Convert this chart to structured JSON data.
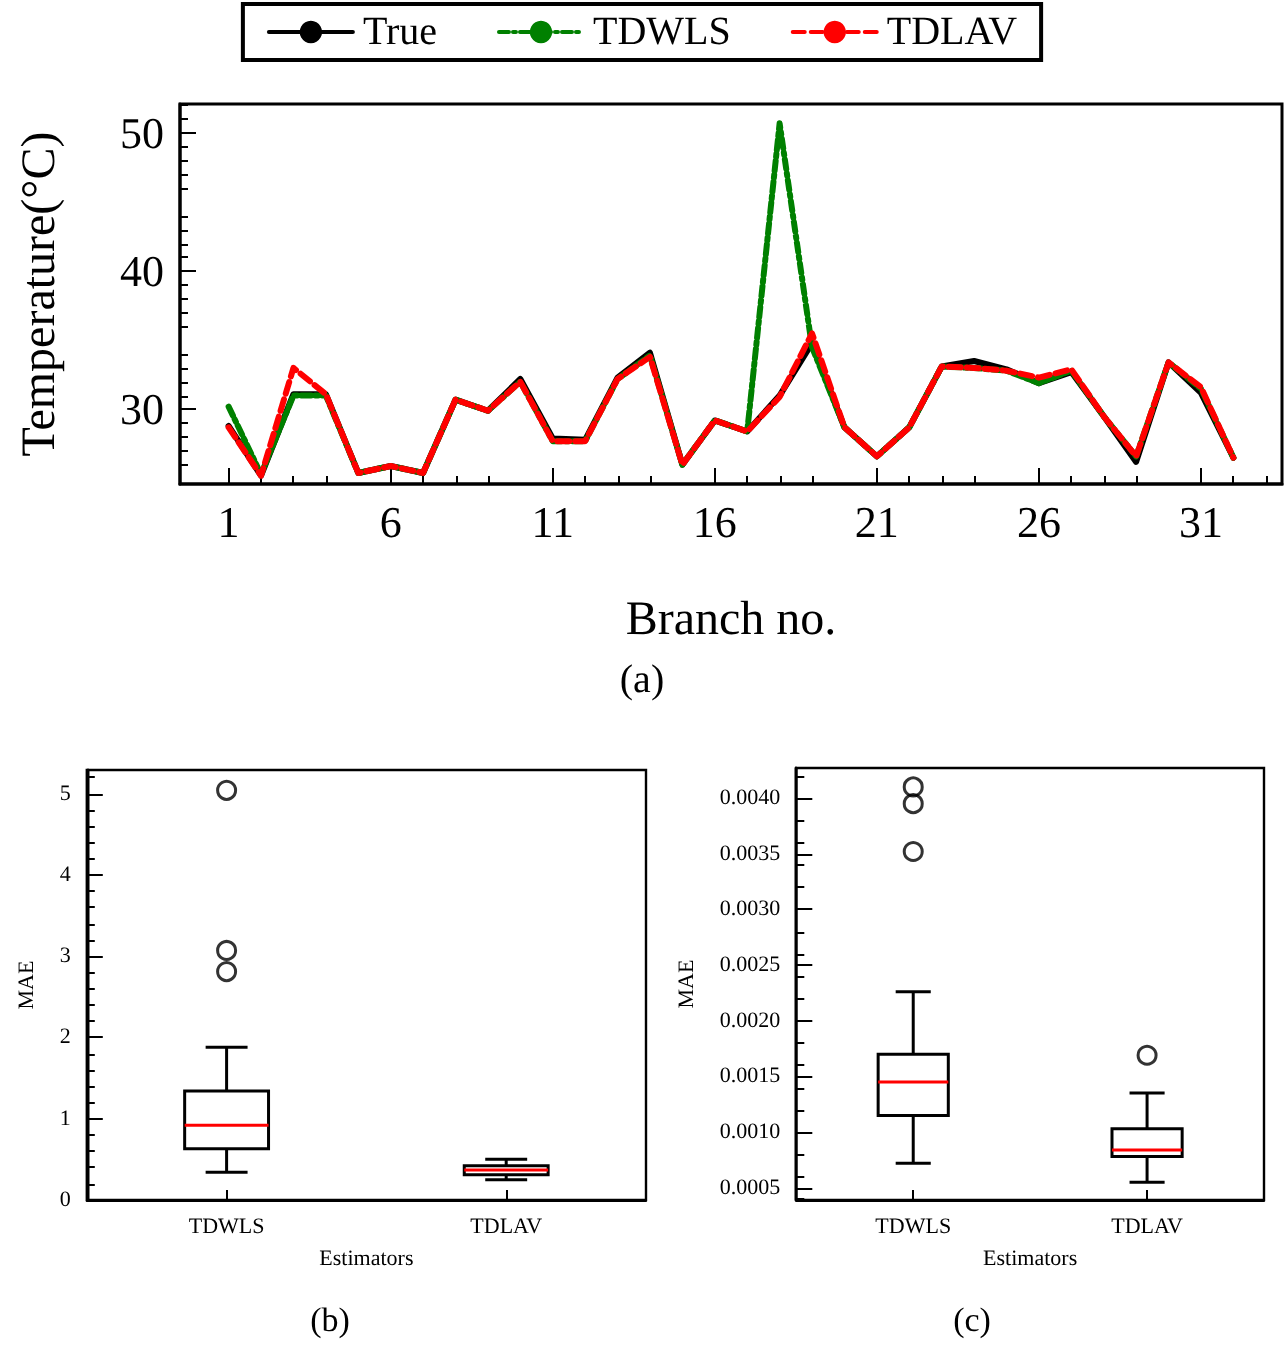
{
  "chart_data": [
    {
      "type": "line",
      "xlabel": "Branch no.",
      "ylabel": "Temperature(°C)",
      "annotations": [
        "(a)"
      ],
      "x": [
        1,
        2,
        3,
        4,
        5,
        6,
        7,
        8,
        9,
        10,
        11,
        12,
        13,
        14,
        15,
        16,
        17,
        18,
        19,
        20,
        21,
        22,
        23,
        24,
        25,
        26,
        27,
        28,
        29,
        30,
        31,
        32
      ],
      "xlim": [
        -0.5,
        33.5
      ],
      "xticks": [
        1,
        6,
        11,
        16,
        21,
        26,
        31
      ],
      "ylim": [
        24.6,
        52.1
      ],
      "yticks": [
        30,
        40,
        50
      ],
      "legend": "top",
      "grid": false,
      "marker": "none",
      "series": [
        {
          "name": "True",
          "color": "#000000",
          "line_style": "solid",
          "values": [
            28.8,
            25.2,
            31.1,
            31.1,
            25.4,
            25.9,
            25.4,
            30.7,
            29.9,
            32.2,
            27.9,
            27.8,
            32.3,
            34.1,
            26.0,
            29.2,
            28.4,
            31.0,
            34.8,
            28.7,
            26.6,
            28.7,
            33.1,
            33.5,
            32.9,
            31.9,
            32.7,
            29.5,
            26.2,
            33.4,
            31.2,
            26.5
          ]
        },
        {
          "name": "TDWLS",
          "color": "#008000",
          "line_style": "dashdot",
          "values": [
            30.2,
            25.3,
            31.0,
            31.0,
            25.4,
            25.9,
            25.4,
            30.7,
            29.9,
            32.0,
            27.7,
            27.7,
            32.2,
            33.9,
            26.0,
            29.2,
            28.4,
            50.7,
            34.5,
            28.7,
            26.6,
            28.7,
            33.1,
            33.0,
            32.8,
            31.9,
            32.8,
            29.5,
            26.6,
            33.4,
            31.5,
            26.5
          ]
        },
        {
          "name": "TDLAV",
          "color": "#ff0000",
          "line_style": "dashed",
          "values": [
            28.7,
            25.2,
            33.0,
            31.1,
            25.4,
            25.9,
            25.4,
            30.7,
            29.9,
            32.0,
            27.7,
            27.7,
            32.2,
            33.8,
            26.0,
            29.2,
            28.4,
            30.9,
            35.5,
            28.7,
            26.6,
            28.7,
            33.1,
            33.0,
            32.8,
            32.3,
            32.9,
            29.5,
            26.6,
            33.4,
            31.6,
            26.5
          ]
        }
      ]
    },
    {
      "type": "box",
      "xlabel": "Estimators",
      "ylabel": "MAE",
      "annotations": [
        "(b)"
      ],
      "categories": [
        "TDWLS",
        "TDLAV"
      ],
      "ylim": [
        0,
        5.29
      ],
      "yticks": [
        0,
        1,
        2,
        3,
        4,
        5
      ],
      "grid": false,
      "series": [
        {
          "color": "#000000",
          "boxes": [
            {
              "low": 0.34,
              "q1": 0.63,
              "median": 0.92,
              "q3": 1.34,
              "high": 1.88,
              "outliers": [
                5.04,
                3.07,
                2.81
              ]
            },
            {
              "low": 0.25,
              "q1": 0.31,
              "median": 0.37,
              "q3": 0.42,
              "high": 0.5
            }
          ]
        }
      ]
    },
    {
      "type": "box",
      "xlabel": "Estimators",
      "ylabel": "MAE",
      "annotations": [
        "(c)"
      ],
      "categories": [
        "TDWLS",
        "TDLAV"
      ],
      "ylim": [
        0.00039,
        0.00427
      ],
      "yticks": [
        {
          "value": 0.0005,
          "label": "0.0005"
        },
        {
          "value": 0.001,
          "label": "0.0010"
        },
        {
          "value": 0.0015,
          "label": "0.0015"
        },
        {
          "value": 0.002,
          "label": "0.0020"
        },
        {
          "value": 0.0025,
          "label": "0.0025"
        },
        {
          "value": 0.003,
          "label": "0.0030"
        },
        {
          "value": 0.0035,
          "label": "0.0035"
        },
        {
          "value": 0.004,
          "label": "0.0040"
        }
      ],
      "grid": false,
      "series": [
        {
          "color": "#000000",
          "boxes": [
            {
              "low": 0.00072,
              "q1": 0.00115,
              "median": 0.00145,
              "q3": 0.0017,
              "high": 0.00226,
              "outliers": [
                0.0041,
                0.00395,
                0.00352
              ]
            },
            {
              "low": 0.00055,
              "q1": 0.00078,
              "median": 0.00084,
              "q3": 0.00103,
              "high": 0.00135,
              "outliers": [
                0.00169
              ]
            }
          ]
        }
      ]
    }
  ]
}
